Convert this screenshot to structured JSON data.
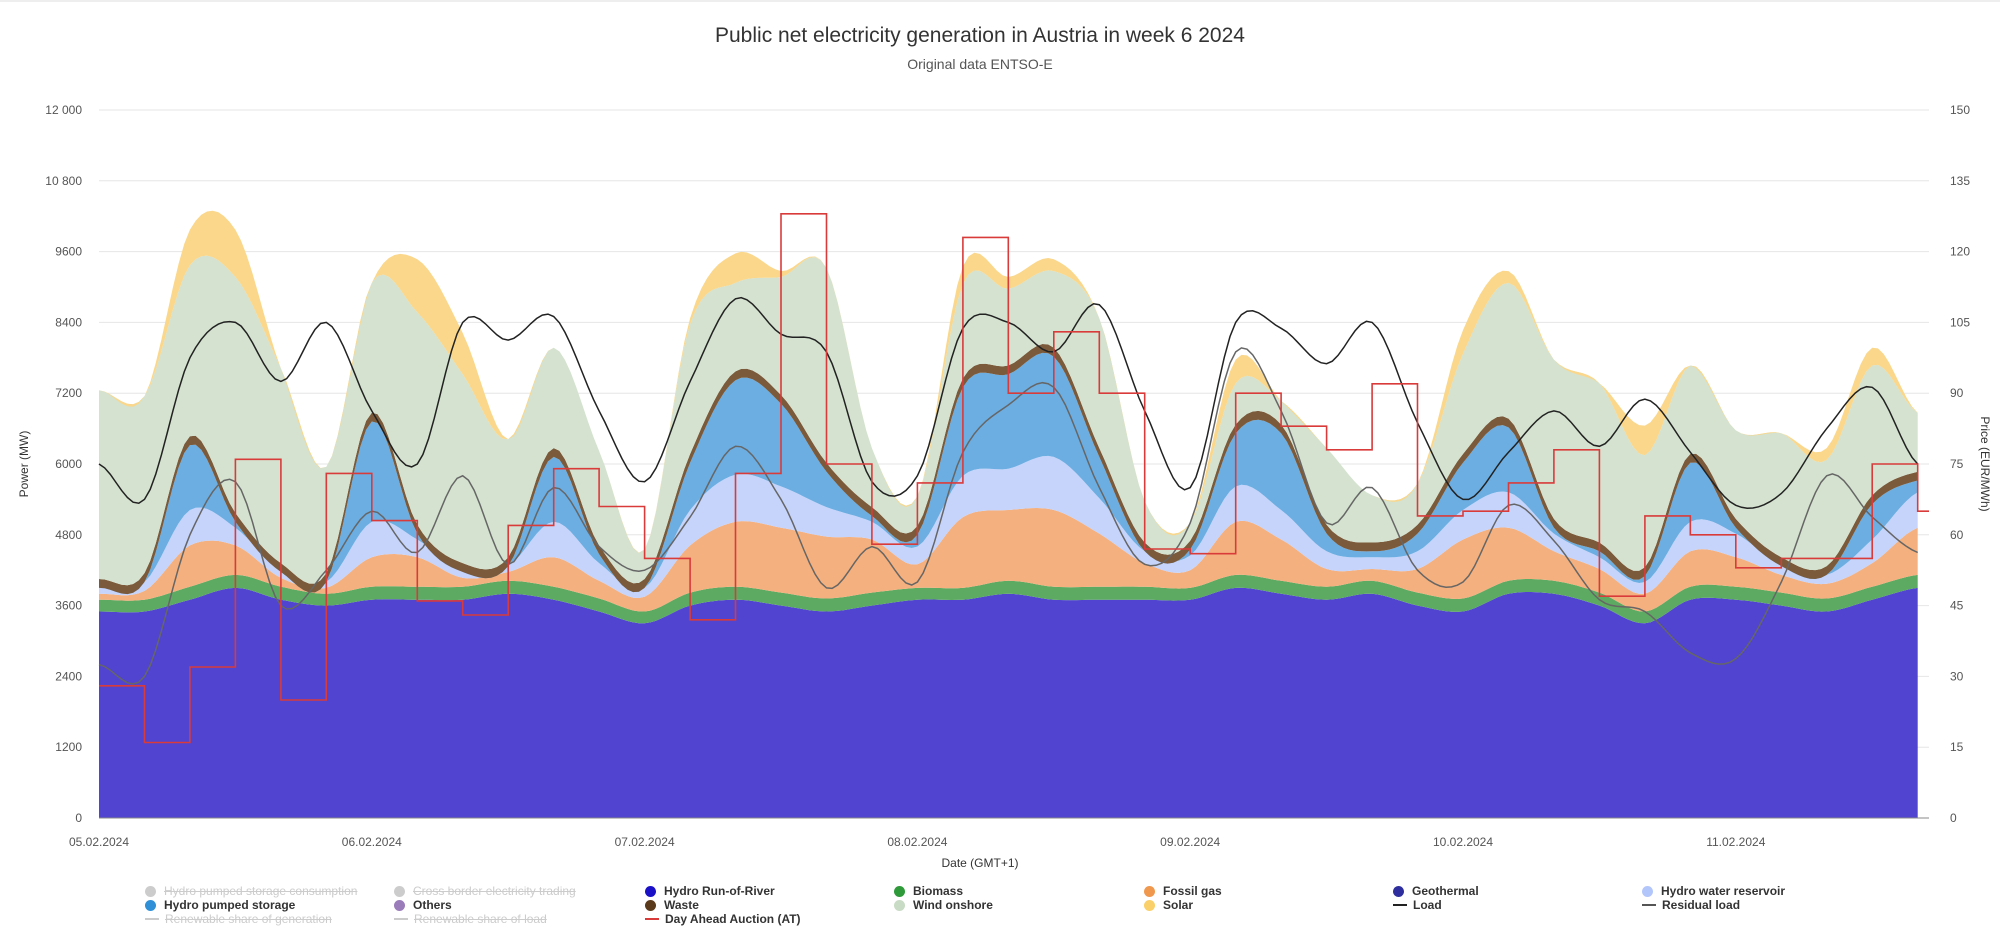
{
  "chart_data": {
    "type": "area",
    "title": "Public net electricity generation in Austria in week 6 2024",
    "subtitle": "Original data ENTSO-E",
    "xlabel": "Date (GMT+1)",
    "ylabel": "Power (MW)",
    "y2label": "Price (EUR/MWh)",
    "ylim": [
      0,
      12000
    ],
    "y2lim": [
      0,
      150
    ],
    "yticks": [
      "0",
      "1200",
      "2400",
      "3600",
      "4800",
      "6000",
      "7200",
      "8400",
      "9600",
      "10 800",
      "12 000"
    ],
    "y2ticks": [
      "0",
      "15",
      "30",
      "45",
      "60",
      "75",
      "90",
      "105",
      "120",
      "135",
      "150"
    ],
    "xticks": [
      "05.02.2024",
      "06.02.2024",
      "07.02.2024",
      "08.02.2024",
      "09.02.2024",
      "10.02.2024",
      "11.02.2024"
    ],
    "x_hours": [
      0,
      4,
      8,
      12,
      16,
      20,
      24,
      28,
      32,
      36,
      40,
      44,
      48,
      52,
      56,
      60,
      64,
      68,
      72,
      76,
      80,
      84,
      88,
      92,
      96,
      100,
      104,
      108,
      112,
      116,
      120,
      124,
      128,
      132,
      136,
      140,
      144,
      148,
      152,
      156,
      160
    ],
    "grid": true,
    "legend_position": "bottom",
    "stacked_series": [
      {
        "name": "Hydro Run-of-River",
        "color": "#5044d0",
        "values": [
          3500,
          3500,
          3700,
          3900,
          3700,
          3600,
          3700,
          3700,
          3700,
          3800,
          3700,
          3500,
          3300,
          3600,
          3700,
          3600,
          3500,
          3600,
          3700,
          3700,
          3800,
          3700,
          3700,
          3700,
          3700,
          3900,
          3800,
          3700,
          3800,
          3600,
          3500,
          3800,
          3800,
          3600,
          3300,
          3700,
          3700,
          3600,
          3500,
          3700,
          3900
        ]
      },
      {
        "name": "Biomass",
        "color": "#5daa62",
        "values": [
          200,
          200,
          220,
          220,
          220,
          200,
          220,
          220,
          220,
          220,
          220,
          220,
          200,
          220,
          220,
          220,
          220,
          220,
          200,
          200,
          220,
          220,
          220,
          220,
          200,
          220,
          220,
          220,
          220,
          220,
          220,
          220,
          220,
          220,
          200,
          220,
          220,
          220,
          220,
          220,
          220
        ]
      },
      {
        "name": "Fossil gas",
        "color": "#f4b07e",
        "values": [
          100,
          150,
          700,
          500,
          150,
          100,
          500,
          500,
          150,
          150,
          500,
          300,
          250,
          800,
          1100,
          1100,
          1050,
          900,
          400,
          1200,
          1200,
          1300,
          900,
          400,
          300,
          900,
          700,
          300,
          200,
          400,
          1000,
          900,
          500,
          400,
          300,
          600,
          500,
          300,
          250,
          400,
          800
        ]
      },
      {
        "name": "Hydro water reservoir",
        "color": "#c6d4fb",
        "values": [
          100,
          150,
          600,
          300,
          100,
          100,
          600,
          300,
          100,
          100,
          600,
          300,
          150,
          600,
          800,
          700,
          500,
          300,
          300,
          700,
          700,
          900,
          600,
          200,
          250,
          600,
          500,
          300,
          200,
          300,
          500,
          600,
          300,
          200,
          200,
          500,
          400,
          150,
          150,
          400,
          600
        ]
      },
      {
        "name": "Hydro pumped storage",
        "color": "#6caee2",
        "values": [
          0,
          0,
          1100,
          100,
          0,
          0,
          1700,
          100,
          0,
          0,
          1100,
          150,
          0,
          800,
          1600,
          1400,
          600,
          100,
          200,
          1500,
          1600,
          1700,
          700,
          0,
          100,
          900,
          1300,
          300,
          100,
          300,
          800,
          1100,
          100,
          100,
          100,
          1000,
          100,
          0,
          0,
          600,
          200
        ]
      },
      {
        "name": "Waste",
        "color": "#7a5a3a",
        "values": [
          150,
          150,
          150,
          150,
          150,
          150,
          150,
          150,
          150,
          150,
          150,
          150,
          150,
          150,
          150,
          150,
          150,
          150,
          150,
          150,
          150,
          150,
          150,
          150,
          150,
          150,
          150,
          150,
          150,
          150,
          150,
          150,
          150,
          150,
          150,
          150,
          150,
          150,
          150,
          150,
          150
        ]
      },
      {
        "name": "Wind onshore",
        "color": "#d4e2cf",
        "values": [
          3200,
          3000,
          2900,
          4000,
          3300,
          1800,
          2200,
          3600,
          3200,
          2000,
          1700,
          1600,
          500,
          2200,
          1500,
          2000,
          3300,
          1000,
          500,
          1600,
          1300,
          1300,
          2200,
          700,
          300,
          700,
          400,
          1300,
          800,
          700,
          1700,
          2300,
          2700,
          2700,
          1900,
          1500,
          1500,
          2100,
          1800,
          2200,
          1000
        ]
      },
      {
        "name": "Solar",
        "color": "#fad78b",
        "values": [
          0,
          0,
          600,
          800,
          0,
          0,
          0,
          900,
          700,
          0,
          0,
          0,
          0,
          100,
          500,
          100,
          0,
          0,
          0,
          300,
          200,
          200,
          0,
          0,
          0,
          400,
          0,
          0,
          0,
          0,
          400,
          200,
          0,
          0,
          500,
          0,
          0,
          0,
          200,
          300,
          0
        ]
      }
    ],
    "line_series": [
      {
        "name": "Load",
        "color": "#222222",
        "axis": "left",
        "values": [
          6000,
          5400,
          7800,
          8400,
          7400,
          8400,
          6900,
          6000,
          8400,
          8100,
          8500,
          6900,
          5700,
          7400,
          8800,
          8200,
          7900,
          5700,
          5800,
          8300,
          8400,
          7900,
          8700,
          6900,
          5600,
          8400,
          8300,
          7700,
          8400,
          6700,
          5400,
          6200,
          6900,
          6300,
          7100,
          6200,
          5300,
          5500,
          6600,
          7300,
          6000
        ]
      },
      {
        "name": "Residual load",
        "color": "#666666",
        "axis": "left",
        "values": [
          2600,
          2400,
          4800,
          5700,
          3600,
          4200,
          5200,
          4500,
          5800,
          4300,
          5600,
          4600,
          4200,
          5100,
          6300,
          5400,
          3900,
          4600,
          4000,
          6200,
          7000,
          7300,
          5600,
          4300,
          5000,
          7900,
          6900,
          5000,
          5600,
          4200,
          4000,
          5300,
          4700,
          3700,
          3500,
          2800,
          2700,
          4000,
          5800,
          5100,
          4500
        ]
      },
      {
        "name": "Day Ahead Auction (AT)",
        "color": "#d93b3b",
        "axis": "right",
        "values": [
          28,
          16,
          32,
          76,
          25,
          73,
          63,
          46,
          43,
          62,
          74,
          66,
          55,
          42,
          73,
          128,
          75,
          58,
          71,
          123,
          90,
          103,
          90,
          57,
          56,
          90,
          83,
          78,
          92,
          64,
          65,
          71,
          78,
          47,
          64,
          60,
          53,
          55,
          55,
          75,
          65
        ]
      }
    ]
  },
  "legend": {
    "items": [
      {
        "label": "Hydro pumped storage consumption",
        "color": "#cccccc",
        "kind": "dot",
        "hidden": true
      },
      {
        "label": "Hydro pumped storage",
        "color": "#2f90d8",
        "kind": "dot",
        "hidden": false
      },
      {
        "label": "Renewable share of generation",
        "color": "#cccccc",
        "kind": "line",
        "hidden": true
      },
      {
        "label": "Cross border electricity trading",
        "color": "#cccccc",
        "kind": "dot",
        "hidden": true
      },
      {
        "label": "Others",
        "color": "#9b7cba",
        "kind": "dot",
        "hidden": false
      },
      {
        "label": "Renewable share of load",
        "color": "#cccccc",
        "kind": "line",
        "hidden": true
      },
      {
        "label": "Hydro Run-of-River",
        "color": "#1a10c8",
        "kind": "dot",
        "hidden": false
      },
      {
        "label": "Waste",
        "color": "#5a3a1a",
        "kind": "dot",
        "hidden": false
      },
      {
        "label": "Day Ahead Auction (AT)",
        "color": "#d93b3b",
        "kind": "line",
        "hidden": false
      },
      {
        "label": "Biomass",
        "color": "#2e9a3a",
        "kind": "dot",
        "hidden": false
      },
      {
        "label": "Wind onshore",
        "color": "#c8dbc4",
        "kind": "dot",
        "hidden": false
      },
      {
        "label": "Fossil gas",
        "color": "#f0984e",
        "kind": "dot",
        "hidden": false
      },
      {
        "label": "Solar",
        "color": "#fad06a",
        "kind": "dot",
        "hidden": false
      },
      {
        "label": "Geothermal",
        "color": "#2e2e9e",
        "kind": "dot",
        "hidden": false
      },
      {
        "label": "Load",
        "color": "#222222",
        "kind": "line",
        "hidden": false
      },
      {
        "label": "Hydro water reservoir",
        "color": "#b3c6fb",
        "kind": "dot",
        "hidden": false
      },
      {
        "label": "Residual load",
        "color": "#555555",
        "kind": "line",
        "hidden": false
      }
    ]
  }
}
